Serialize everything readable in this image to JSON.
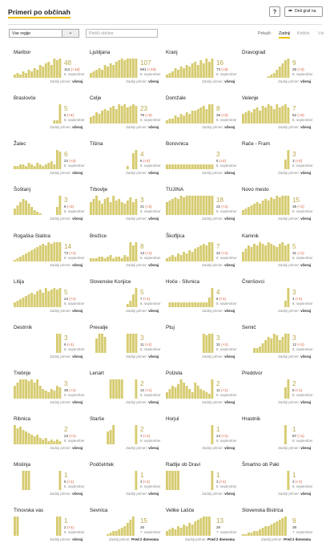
{
  "header": {
    "title": "Primeri po občinah",
    "help_label": "?",
    "share_label": "Deli graf na"
  },
  "filters": {
    "region_value": "Vse regije",
    "search_placeholder": "Poišči občino",
    "sort_label": "Prikaži:",
    "sort_tabs": [
      "Zadnji",
      "Kritični",
      "Vsi"
    ]
  },
  "colors": {
    "bar": "#d6cb70",
    "accent": "#f0c000",
    "change": "#d4502c"
  },
  "labels": {
    "last_case": "Zadnji primer:"
  },
  "municipalities": [
    {
      "name": "Maribor",
      "big": "48",
      "total": "114",
      "change": "(+12)",
      "date": "8. september",
      "last": "včeraj",
      "bars": [
        2,
        3,
        2,
        4,
        3,
        5,
        4,
        6,
        5,
        8,
        7,
        9,
        10,
        8,
        12,
        11,
        12
      ]
    },
    {
      "name": "Ljubljana",
      "big": "107",
      "total": "591",
      "change": "(+10)",
      "date": "8. september",
      "last": "včeraj",
      "bars": [
        3,
        4,
        5,
        6,
        5,
        8,
        7,
        9,
        8,
        10,
        11,
        12,
        11,
        12,
        12,
        12,
        12
      ]
    },
    {
      "name": "Kranj",
      "big": "16",
      "total": "73",
      "change": "(+6)",
      "date": "8. september",
      "last": "včeraj",
      "bars": [
        2,
        3,
        4,
        6,
        5,
        7,
        6,
        8,
        7,
        9,
        10,
        8,
        11,
        9,
        12,
        10,
        12
      ]
    },
    {
      "name": "Dravograd",
      "big": "9",
      "total": "28",
      "change": "(+4)",
      "date": "8. september",
      "last": "včeraj",
      "bars": [
        0,
        0,
        0,
        0,
        0,
        0,
        0,
        0,
        0,
        1,
        2,
        3,
        5,
        7,
        9,
        11,
        12
      ]
    },
    {
      "name": "Braslovče",
      "big": "5",
      "total": "6",
      "change": "(+4)",
      "date": "8. september",
      "last": "včeraj",
      "bars": [
        0,
        0,
        0,
        0,
        0,
        0,
        0,
        0,
        0,
        0,
        0,
        0,
        0,
        0,
        2,
        2,
        12
      ]
    },
    {
      "name": "Celje",
      "big": "23",
      "total": "79",
      "change": "(+2)",
      "date": "8. september",
      "last": "včeraj",
      "bars": [
        4,
        5,
        7,
        6,
        8,
        9,
        8,
        10,
        11,
        9,
        12,
        11,
        12,
        10,
        11,
        12,
        11
      ]
    },
    {
      "name": "Domžale",
      "big": "8",
      "total": "36",
      "change": "(+2)",
      "date": "8. september",
      "last": "včeraj",
      "bars": [
        2,
        3,
        3,
        5,
        4,
        6,
        5,
        7,
        6,
        8,
        8,
        9,
        10,
        11,
        9,
        12,
        12
      ]
    },
    {
      "name": "Velenje",
      "big": "7",
      "total": "52",
      "change": "(+2)",
      "date": "8. september",
      "last": "včeraj",
      "bars": [
        6,
        7,
        8,
        7,
        9,
        10,
        8,
        11,
        10,
        12,
        11,
        9,
        12,
        10,
        11,
        12,
        10
      ]
    },
    {
      "name": "Žalec",
      "big": "6",
      "total": "22",
      "change": "(+2)",
      "date": "8. september",
      "last": "včeraj",
      "bars": [
        2,
        2,
        3,
        3,
        2,
        4,
        3,
        2,
        4,
        3,
        2,
        3,
        4,
        5,
        3,
        12,
        11
      ]
    },
    {
      "name": "Tišina",
      "big": "4",
      "total": "6",
      "change": "(+2)",
      "date": "8. september",
      "last": "včeraj",
      "bars": [
        0,
        0,
        0,
        0,
        0,
        0,
        0,
        0,
        0,
        0,
        0,
        0,
        0,
        2,
        0,
        10,
        12
      ]
    },
    {
      "name": "Borovnica",
      "big": "3",
      "total": "5",
      "change": "(+2)",
      "date": "8. september",
      "last": "včeraj",
      "bars": [
        3,
        3,
        3,
        3,
        3,
        3,
        3,
        3,
        3,
        3,
        3,
        3,
        3,
        3,
        3,
        3,
        3
      ]
    },
    {
      "name": "Rače - Fram",
      "big": "3",
      "total": "3",
      "change": "(+2)",
      "date": "8. september",
      "last": "včeraj",
      "bars": [
        0,
        0,
        0,
        0,
        0,
        0,
        0,
        0,
        0,
        0,
        0,
        0,
        0,
        0,
        0,
        6,
        12
      ]
    },
    {
      "name": "Šoštanj",
      "big": "3",
      "total": "6",
      "change": "(+2)",
      "date": "8. september",
      "last": "včeraj",
      "bars": [
        4,
        6,
        8,
        10,
        9,
        7,
        5,
        3,
        2,
        1,
        0,
        0,
        0,
        0,
        0,
        5,
        12
      ]
    },
    {
      "name": "Trbovlje",
      "big": "3",
      "total": "21",
      "change": "(+2)",
      "date": "8. september",
      "last": "včeraj",
      "bars": [
        8,
        10,
        12,
        9,
        7,
        10,
        11,
        8,
        12,
        9,
        10,
        8,
        7,
        9,
        11,
        8,
        10
      ]
    },
    {
      "name": "TUJINA",
      "big": "18",
      "total": "22",
      "change": "(+1)",
      "date": "8. september",
      "last": "včeraj",
      "bars": [
        8,
        9,
        10,
        11,
        10,
        12,
        11,
        12,
        12,
        12,
        12,
        12,
        12,
        12,
        12,
        12,
        12
      ]
    },
    {
      "name": "Novo mesto",
      "big": "15",
      "total": "39",
      "change": "(+1)",
      "date": "8. september",
      "last": "včeraj",
      "bars": [
        3,
        4,
        5,
        6,
        7,
        8,
        7,
        9,
        10,
        9,
        11,
        10,
        12,
        11,
        12,
        12,
        12
      ]
    },
    {
      "name": "Rogaška Slatina",
      "big": "14",
      "total": "73",
      "change": "(+1)",
      "date": "8. september",
      "last": "včeraj",
      "bars": [
        1,
        2,
        3,
        4,
        5,
        6,
        7,
        8,
        9,
        10,
        11,
        10,
        12,
        11,
        12,
        12,
        12
      ]
    },
    {
      "name": "Brežice",
      "big": "8",
      "total": "13",
      "change": "(+1)",
      "date": "8. september",
      "last": "včeraj",
      "bars": [
        2,
        2,
        2,
        3,
        3,
        2,
        3,
        4,
        2,
        3,
        3,
        2,
        4,
        3,
        12,
        10,
        12
      ]
    },
    {
      "name": "Škofljica",
      "big": "7",
      "total": "22",
      "change": "(+1)",
      "date": "8. september",
      "last": "včeraj",
      "bars": [
        2,
        3,
        4,
        3,
        5,
        4,
        6,
        5,
        7,
        6,
        8,
        9,
        10,
        11,
        10,
        12,
        12
      ]
    },
    {
      "name": "Kamnik",
      "big": "5",
      "total": "31",
      "change": "(+1)",
      "date": "8. september",
      "last": "včeraj",
      "bars": [
        6,
        8,
        10,
        9,
        11,
        10,
        12,
        11,
        10,
        12,
        11,
        10,
        9,
        11,
        12,
        10,
        11
      ]
    },
    {
      "name": "Litija",
      "big": "5",
      "total": "24",
      "change": "(+1)",
      "date": "8. september",
      "last": "včeraj",
      "bars": [
        3,
        4,
        5,
        6,
        7,
        8,
        9,
        8,
        10,
        11,
        9,
        12,
        10,
        11,
        12,
        11,
        12
      ]
    },
    {
      "name": "Slovenske Konjice",
      "big": "5",
      "total": "7",
      "change": "(+1)",
      "date": "8. september",
      "last": "včeraj",
      "bars": [
        0,
        0,
        0,
        0,
        0,
        0,
        0,
        0,
        0,
        0,
        0,
        0,
        0,
        2,
        4,
        8,
        12
      ]
    },
    {
      "name": "Hoče - Slivnica",
      "big": "4",
      "total": "8",
      "change": "(+1)",
      "date": "8. september",
      "last": "včeraj",
      "bars": [
        0,
        3,
        3,
        3,
        3,
        3,
        3,
        3,
        3,
        3,
        3,
        3,
        3,
        3,
        3,
        6,
        12
      ]
    },
    {
      "name": "Črenšovci",
      "big": "3",
      "total": "4",
      "change": "(+1)",
      "date": "8. september",
      "last": "včeraj",
      "bars": [
        0,
        0,
        0,
        0,
        0,
        0,
        0,
        0,
        0,
        0,
        0,
        0,
        0,
        0,
        0,
        4,
        12
      ]
    },
    {
      "name": "Destrnik",
      "big": "3",
      "total": "6",
      "change": "(+1)",
      "date": "8. september",
      "last": "včeraj",
      "bars": [
        0,
        0,
        0,
        0,
        0,
        0,
        0,
        0,
        0,
        0,
        0,
        0,
        0,
        0,
        0,
        12,
        12
      ]
    },
    {
      "name": "Prevalje",
      "big": "3",
      "total": "11",
      "change": "(+1)",
      "date": "8. september",
      "last": "včeraj",
      "bars": [
        0,
        0,
        9,
        12,
        12,
        10,
        0,
        0,
        0,
        0,
        0,
        0,
        0,
        12,
        12,
        12,
        12
      ]
    },
    {
      "name": "Ptuj",
      "big": "3",
      "total": "31",
      "change": "(+1)",
      "date": "8. september",
      "last": "včeraj",
      "bars": [
        0,
        0,
        0,
        0,
        0,
        0,
        0,
        0,
        0,
        0,
        0,
        0,
        0,
        12,
        11,
        12,
        12
      ]
    },
    {
      "name": "Semič",
      "big": "3",
      "total": "12",
      "change": "(+1)",
      "date": "8. september",
      "last": "včeraj",
      "bars": [
        0,
        0,
        0,
        0,
        3,
        3,
        4,
        6,
        8,
        10,
        9,
        12,
        11,
        8,
        10,
        12,
        12
      ]
    },
    {
      "name": "Trebnje",
      "big": "3",
      "total": "38",
      "change": "(+1)",
      "date": "8. september",
      "last": "včeraj",
      "bars": [
        8,
        10,
        12,
        12,
        12,
        11,
        12,
        10,
        12,
        8,
        6,
        5,
        4,
        6,
        5,
        8,
        7
      ]
    },
    {
      "name": "Lenart",
      "big": "2",
      "total": "12",
      "change": "(+1)",
      "date": "8. september",
      "last": "včeraj",
      "bars": [
        0,
        0,
        0,
        0,
        0,
        0,
        0,
        12,
        12,
        12,
        12,
        12,
        0,
        0,
        0,
        0,
        12
      ]
    },
    {
      "name": "Polzela",
      "big": "2",
      "total": "11",
      "change": "(+1)",
      "date": "8. september",
      "last": "včeraj",
      "bars": [
        4,
        6,
        8,
        7,
        9,
        12,
        10,
        8,
        6,
        4,
        10,
        8,
        6,
        5,
        4,
        3,
        12
      ]
    },
    {
      "name": "Preddvor",
      "big": "2",
      "total": "5",
      "change": "(+1)",
      "date": "8. september",
      "last": "včeraj",
      "bars": [
        0,
        0,
        0,
        0,
        0,
        0,
        0,
        0,
        0,
        0,
        0,
        0,
        0,
        0,
        0,
        7,
        12
      ]
    },
    {
      "name": "Ribnica",
      "big": "2",
      "total": "23",
      "change": "(+1)",
      "date": "8. september",
      "last": "včeraj",
      "bars": [
        12,
        10,
        11,
        9,
        8,
        7,
        6,
        5,
        6,
        4,
        3,
        4,
        2,
        3,
        2,
        3,
        2
      ]
    },
    {
      "name": "Starše",
      "big": "2",
      "total": "7",
      "change": "(+1)",
      "date": "8. september",
      "last": "včeraj",
      "bars": [
        0,
        0,
        0,
        0,
        0,
        0,
        8,
        9,
        12,
        0,
        0,
        0,
        0,
        0,
        0,
        0,
        12
      ]
    },
    {
      "name": "Horjul",
      "big": "1",
      "total": "24",
      "change": "(+1)",
      "date": "8. september",
      "last": "včeraj",
      "bars": [
        0,
        0,
        0,
        0,
        0,
        0,
        0,
        0,
        0,
        0,
        0,
        0,
        0,
        0,
        0,
        0,
        12
      ]
    },
    {
      "name": "Hrastnik",
      "big": "1",
      "total": "87",
      "change": "(+1)",
      "date": "8. september",
      "last": "včeraj",
      "bars": [
        0,
        0,
        0,
        0,
        0,
        0,
        0,
        0,
        0,
        0,
        0,
        0,
        0,
        0,
        0,
        12,
        0
      ]
    },
    {
      "name": "Mislinja",
      "big": "1",
      "total": "5",
      "change": "(+1)",
      "date": "8. september",
      "last": "včeraj",
      "bars": [
        0,
        0,
        0,
        12,
        12,
        12,
        0,
        0,
        0,
        0,
        0,
        0,
        0,
        0,
        0,
        0,
        12
      ]
    },
    {
      "name": "Podčetrtek",
      "big": "1",
      "total": "4",
      "change": "(+1)",
      "date": "8. september",
      "last": "včeraj",
      "bars": [
        0,
        0,
        0,
        0,
        0,
        0,
        0,
        0,
        0,
        0,
        0,
        0,
        0,
        0,
        0,
        0,
        12
      ]
    },
    {
      "name": "Radlje ob Dravi",
      "big": "1",
      "total": "3",
      "change": "(+1)",
      "date": "8. september",
      "last": "včeraj",
      "bars": [
        12,
        12,
        12,
        12,
        12,
        0,
        0,
        0,
        0,
        0,
        0,
        0,
        0,
        0,
        0,
        0,
        12
      ]
    },
    {
      "name": "Šmartno ob Paki",
      "big": "1",
      "total": "2",
      "change": "(+1)",
      "date": "8. september",
      "last": "včeraj",
      "bars": [
        0,
        0,
        0,
        0,
        0,
        0,
        0,
        0,
        0,
        0,
        0,
        0,
        0,
        0,
        0,
        0,
        12
      ]
    },
    {
      "name": "Trnovska vas",
      "big": "1",
      "total": "2",
      "change": "(+1)",
      "date": "8. september",
      "last": "včeraj",
      "bars": [
        12,
        12,
        0,
        0,
        0,
        0,
        0,
        0,
        0,
        0,
        0,
        0,
        0,
        0,
        0,
        12,
        12
      ]
    },
    {
      "name": "Sevnica",
      "big": "15",
      "total": "26",
      "change": "",
      "date": "7. september",
      "last": "Pred 2 dnevoma",
      "bars": [
        0,
        0,
        0,
        0,
        0,
        0,
        1,
        2,
        3,
        3,
        4,
        5,
        6,
        8,
        10,
        12,
        0
      ]
    },
    {
      "name": "Velike Lašče",
      "big": "13",
      "total": "29",
      "change": "",
      "date": "7. september",
      "last": "Pred 2 dnevoma",
      "bars": [
        3,
        4,
        5,
        4,
        6,
        5,
        7,
        6,
        8,
        7,
        9,
        10,
        11,
        12,
        12,
        12,
        0
      ]
    },
    {
      "name": "Slovenska Bistrica",
      "big": "9",
      "total": "39",
      "change": "",
      "date": "7. september",
      "last": "Pred 2 dnevoma",
      "bars": [
        1,
        1,
        2,
        2,
        3,
        3,
        4,
        5,
        6,
        6,
        7,
        8,
        9,
        10,
        11,
        12,
        0
      ]
    }
  ]
}
